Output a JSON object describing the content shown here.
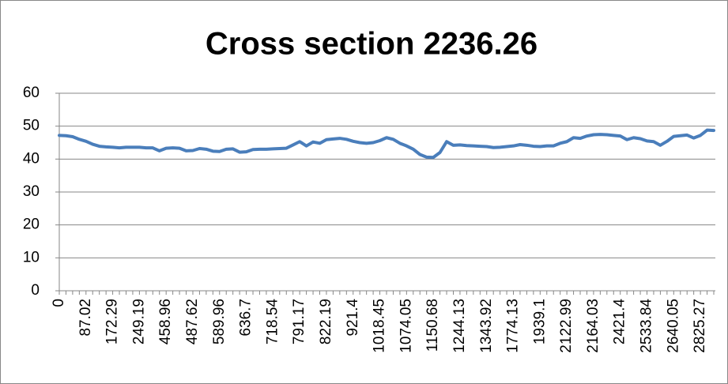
{
  "chart_data": {
    "type": "line",
    "title": "Cross section 2236.26",
    "categories": [
      "0",
      null,
      null,
      null,
      "87.02",
      null,
      null,
      null,
      "172.29",
      null,
      null,
      null,
      "249.19",
      null,
      null,
      null,
      "458.96",
      null,
      null,
      null,
      "487.62",
      null,
      null,
      null,
      "589.96",
      null,
      null,
      null,
      "636.7",
      null,
      null,
      null,
      "718.54",
      null,
      null,
      null,
      "791.17",
      null,
      null,
      null,
      "822.19",
      null,
      null,
      null,
      "921.4",
      null,
      null,
      null,
      "1018.45",
      null,
      null,
      null,
      "1074.05",
      null,
      null,
      null,
      "1150.68",
      null,
      null,
      null,
      "1244.13",
      null,
      null,
      null,
      "1343.92",
      null,
      null,
      null,
      "1774.13",
      null,
      null,
      null,
      "1939.1",
      null,
      null,
      null,
      "2122.99",
      null,
      null,
      null,
      "2164.03",
      null,
      null,
      null,
      "2421.4",
      null,
      null,
      null,
      "2533.84",
      null,
      null,
      null,
      "2640.05",
      null,
      null,
      null,
      "2825.27",
      null,
      null
    ],
    "series": [
      {
        "name": "Cross section 2236.26",
        "color": "#4a7ebb",
        "values": [
          47.2,
          47.1,
          46.8,
          46.0,
          45.4,
          44.5,
          43.9,
          43.7,
          43.6,
          43.4,
          43.6,
          43.6,
          43.6,
          43.4,
          43.4,
          42.5,
          43.3,
          43.4,
          43.3,
          42.5,
          42.6,
          43.2,
          43.0,
          42.4,
          42.3,
          43.0,
          43.1,
          42.1,
          42.2,
          42.9,
          43.0,
          43.0,
          43.1,
          43.2,
          43.3,
          44.3,
          45.3,
          44.0,
          45.2,
          44.8,
          45.9,
          46.1,
          46.3,
          46.0,
          45.4,
          45.0,
          44.8,
          45.0,
          45.6,
          46.5,
          46.0,
          44.8,
          44.0,
          43.0,
          41.4,
          40.6,
          40.5,
          42.0,
          45.3,
          44.2,
          44.3,
          44.1,
          44.0,
          43.9,
          43.8,
          43.5,
          43.6,
          43.8,
          44.0,
          44.4,
          44.2,
          43.9,
          43.8,
          44.0,
          44.0,
          44.8,
          45.3,
          46.5,
          46.3,
          47.0,
          47.4,
          47.5,
          47.4,
          47.2,
          47.0,
          45.9,
          46.5,
          46.2,
          45.5,
          45.3,
          44.2,
          45.4,
          46.9,
          47.1,
          47.3,
          46.4,
          47.2,
          48.8,
          48.7
        ]
      }
    ],
    "ylim": [
      0,
      60
    ],
    "yticks": [
      0,
      10,
      20,
      30,
      40,
      50,
      60
    ],
    "grid": true
  }
}
